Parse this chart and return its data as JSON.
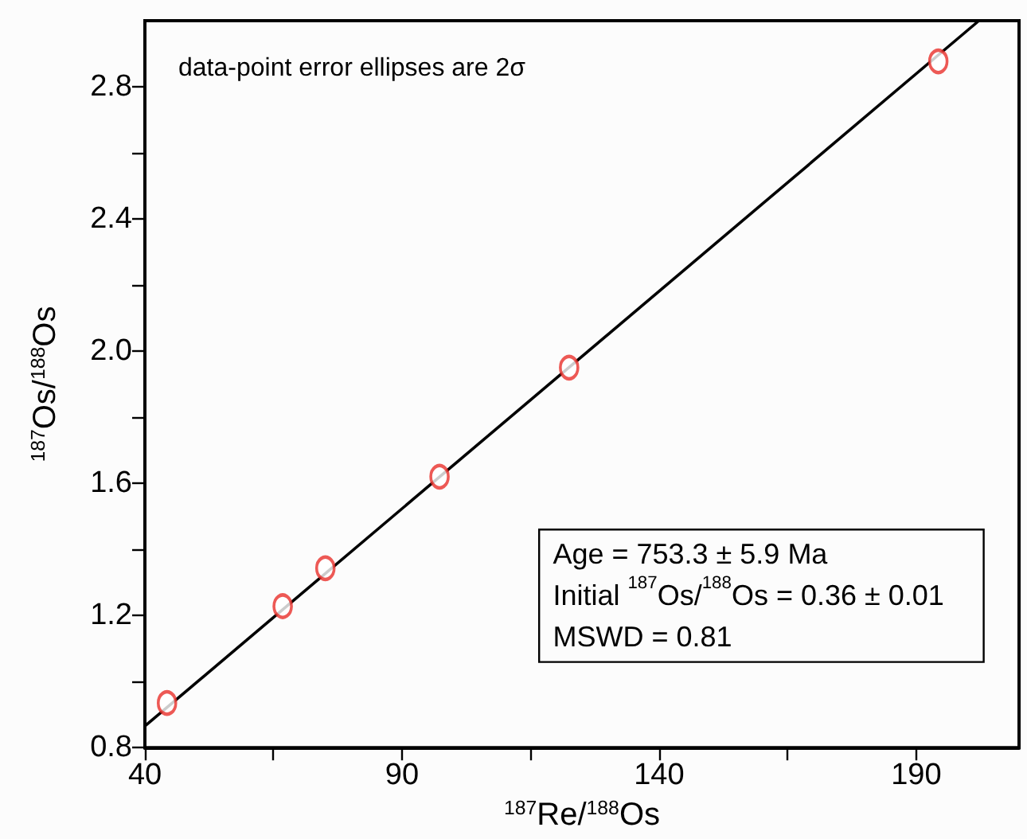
{
  "chart_data": {
    "type": "scatter",
    "xlabel": "$^{187}$Re/$^{188}$Os",
    "ylabel": "$^{187}$Os/$^{188}$Os",
    "annotations": [
      "data-point error ellipses are 2σ",
      "Age = 753.3 ± 5.9 Ma",
      "Initial $^{187}$Os/$^{188}$Os = 0.36 ± 0.01",
      "MSWD = 0.81"
    ],
    "series": [
      {
        "color": "#e8302a",
        "marker": "circle",
        "x": [
          44.3,
          66.8,
          75.1,
          97.3,
          122.5,
          194.3
        ],
        "values": [
          0.935,
          1.228,
          1.343,
          1.62,
          1.95,
          2.877
        ]
      },
      {
        "type": "line",
        "color": "#000000",
        "marker": "none",
        "x": [
          40,
          202.2
        ],
        "values": [
          0.865,
          3.0
        ]
      }
    ],
    "xlim": [
      40,
      210
    ],
    "ylim": [
      0.8,
      3.0
    ],
    "xticks": [
      40,
      {
        "value": 65,
        "label": null
      },
      90,
      {
        "value": 115,
        "label": null
      },
      140,
      {
        "value": 165,
        "label": null
      },
      190
    ],
    "yticks": [
      0.8,
      {
        "value": 1.0,
        "label": null
      },
      1.2,
      {
        "value": 1.4,
        "label": null
      },
      1.6,
      {
        "value": 1.8,
        "label": null
      },
      {
        "value": 2.0,
        "label": "2.0"
      },
      {
        "value": 2.2,
        "label": null
      },
      2.4,
      {
        "value": 2.6,
        "label": null
      },
      2.8
    ],
    "grid": false
  }
}
